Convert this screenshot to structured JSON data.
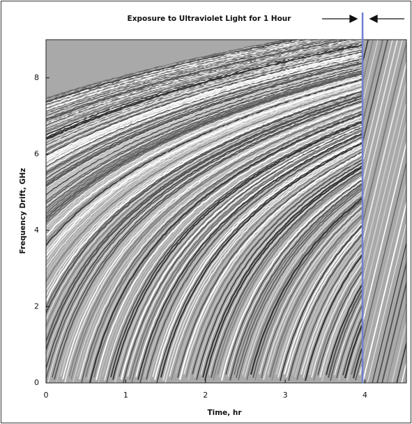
{
  "chart_data": {
    "type": "image",
    "annotation": {
      "text": "Exposure to Ultraviolet Light for 1 Hour",
      "x": 3.97
    },
    "xlabel": "Time, hr",
    "ylabel": "Frequency Drift, GHz",
    "xlim": [
      0,
      4.52
    ],
    "ylim": [
      0,
      9
    ],
    "xticks": [
      0,
      1,
      2,
      3,
      4
    ],
    "yticks": [
      0,
      2,
      4,
      6,
      8
    ],
    "marker_color": "#6f7fd0"
  }
}
